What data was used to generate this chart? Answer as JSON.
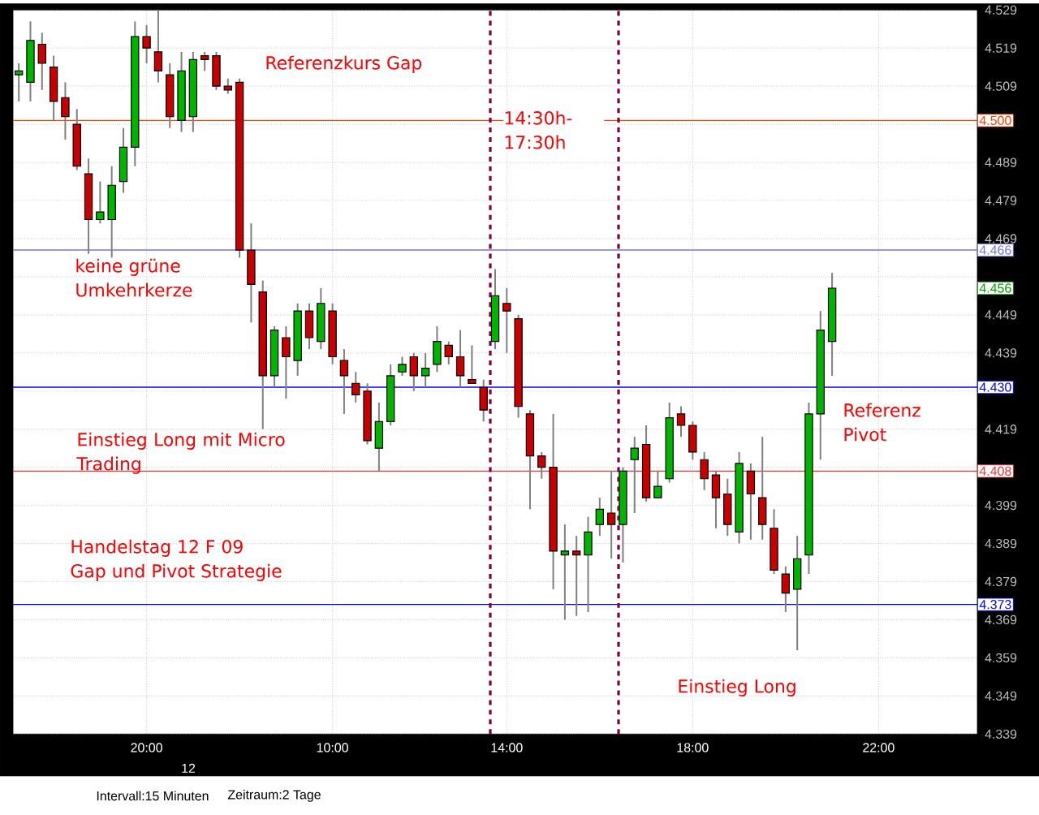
{
  "chart_data": {
    "type": "candlestick",
    "categories": [
      null,
      null,
      null,
      null,
      null,
      null,
      null,
      null,
      null,
      null,
      null,
      "20:00",
      null,
      null,
      null,
      null,
      null,
      null,
      null,
      null,
      null,
      null,
      null,
      null,
      null,
      null,
      null,
      "10:00",
      null,
      null,
      null,
      null,
      null,
      null,
      null,
      null,
      null,
      null,
      null,
      null,
      null,
      null,
      "14:00",
      null,
      null,
      null,
      null,
      null,
      null,
      null,
      null,
      null,
      null,
      null,
      null,
      null,
      null,
      null,
      "18:00",
      null,
      null,
      null,
      null,
      null,
      null,
      null,
      null,
      null,
      null,
      null,
      null,
      null,
      null,
      null,
      "22:00",
      null,
      null,
      null,
      null,
      null,
      null,
      null,
      null
    ],
    "ohlc": [
      [
        4512,
        4515,
        4505,
        4513
      ],
      [
        4510,
        4526,
        4505,
        4521
      ],
      [
        4520,
        4523,
        4508,
        4515
      ],
      [
        4514,
        4517,
        4500,
        4505
      ],
      [
        4506,
        4510,
        4495,
        4501
      ],
      [
        4499,
        4503,
        4487,
        4488
      ],
      [
        4486,
        4490,
        4465,
        4474
      ],
      [
        4474,
        4484,
        4473,
        4476
      ],
      [
        4474,
        4488,
        4464,
        4483
      ],
      [
        4484,
        4498,
        4481,
        4493
      ],
      [
        4493,
        4526,
        4488,
        4522
      ],
      [
        4522,
        4525,
        4515,
        4519
      ],
      [
        4518,
        4529,
        4510,
        4513
      ],
      [
        4512,
        4515,
        4498,
        4501
      ],
      [
        4500,
        4518,
        4497,
        4513
      ],
      [
        4501,
        4518,
        4497,
        4516
      ],
      [
        4517,
        4518,
        4513,
        4516
      ],
      [
        4517,
        4518,
        4508,
        4509
      ],
      [
        4509,
        4511,
        4507,
        4508
      ],
      [
        4510,
        4511,
        4464,
        4466
      ],
      [
        4466,
        4473,
        4447,
        4457
      ],
      [
        4455,
        4458,
        4419,
        4433
      ],
      [
        4433,
        4446,
        4430,
        4445
      ],
      [
        4443,
        4446,
        4427,
        4438
      ],
      [
        4437,
        4452,
        4433,
        4450
      ],
      [
        4450,
        4452,
        4440,
        4443
      ],
      [
        4442,
        4456,
        4440,
        4452
      ],
      [
        4450,
        4452,
        4436,
        4438
      ],
      [
        4437,
        4440,
        4423,
        4433
      ],
      [
        4431,
        4434,
        4426,
        4428
      ],
      [
        4429,
        4431,
        4415,
        4416
      ],
      [
        4414,
        4426,
        4408,
        4421
      ],
      [
        4421,
        4436,
        4420,
        4433
      ],
      [
        4434,
        4438,
        4433,
        4436
      ],
      [
        4438,
        4439,
        4429,
        4433
      ],
      [
        4433,
        4439,
        4430,
        4435
      ],
      [
        4436,
        4446,
        4434,
        4442
      ],
      [
        4441,
        4442,
        4436,
        4438
      ],
      [
        4438,
        4445,
        4430,
        4433
      ],
      [
        4432,
        4441,
        4431,
        4431
      ],
      [
        4430,
        4432,
        4421,
        4424
      ],
      [
        4442,
        4461,
        4440,
        4454
      ],
      [
        4452,
        4456,
        4439,
        4450
      ],
      [
        4448,
        4449,
        4422,
        4425
      ],
      [
        4423,
        4424,
        4398,
        4412
      ],
      [
        4412,
        4413,
        4406,
        4409
      ],
      [
        4409,
        4423,
        4377,
        4387
      ],
      [
        4386,
        4394,
        4369,
        4387
      ],
      [
        4387,
        4391,
        4370,
        4386
      ],
      [
        4386,
        4396,
        4371,
        4392
      ],
      [
        4394,
        4401,
        4391,
        4398
      ],
      [
        4397,
        4408,
        4385,
        4394
      ],
      [
        4394,
        4409,
        4384,
        4408
      ],
      [
        4411,
        4417,
        4397,
        4414
      ],
      [
        4415,
        4420,
        4400,
        4401
      ],
      [
        4401,
        4408,
        4401,
        4404
      ],
      [
        4406,
        4426,
        4405,
        4422
      ],
      [
        4423,
        4425,
        4417,
        4420
      ],
      [
        4420,
        4421,
        4411,
        4413
      ],
      [
        4411,
        4413,
        4403,
        4406
      ],
      [
        4407,
        4408,
        4393,
        4401
      ],
      [
        4402,
        4406,
        4391,
        4394
      ],
      [
        4392,
        4413,
        4389,
        4410
      ],
      [
        4408,
        4410,
        4390,
        4402
      ],
      [
        4401,
        4417,
        4390,
        4394
      ],
      [
        4393,
        4398,
        4381,
        4382
      ],
      [
        4381,
        4383,
        4371,
        4376
      ],
      [
        4377,
        4391,
        4361,
        4385
      ],
      [
        4386,
        4426,
        4381,
        4423
      ],
      [
        4423,
        4450,
        4411,
        4445
      ],
      [
        4442,
        4460,
        4433,
        4456
      ],
      null,
      null,
      null,
      null,
      null,
      null,
      null,
      null,
      null,
      null,
      null,
      null
    ],
    "colors": [
      "#00b400",
      "#00b400",
      "#c80000",
      "#c80000",
      "#c80000",
      "#c80000",
      "#c80000",
      "#00b400",
      "#00b400",
      "#00b400",
      "#00b400",
      "#c80000",
      "#c80000",
      "#c80000",
      "#00b400",
      "#00b400",
      "#c80000",
      "#c80000",
      "#c80000",
      "#c80000",
      "#c80000",
      "#c80000",
      "#00b400",
      "#c80000",
      "#00b400",
      "#c80000",
      "#00b400",
      "#c80000",
      "#c80000",
      "#c80000",
      "#c80000",
      "#00b400",
      "#00b400",
      "#00b400",
      "#c80000",
      "#00b400",
      "#00b400",
      "#c80000",
      "#c80000",
      "#c80000",
      "#c80000",
      "#00b400",
      "#c80000",
      "#c80000",
      "#c80000",
      "#c80000",
      "#c80000",
      "#00b400",
      "#c80000",
      "#00b400",
      "#00b400",
      "#c80000",
      "#00b400",
      "#00b400",
      "#c80000",
      "#00b400",
      "#00b400",
      "#c80000",
      "#c80000",
      "#c80000",
      "#c80000",
      "#c80000",
      "#00b400",
      "#c80000",
      "#c80000",
      "#c80000",
      "#c80000",
      "#00b400",
      "#00b400",
      "#00b400",
      "#00b400",
      null,
      null,
      null,
      null,
      null,
      null,
      null,
      null,
      null,
      null,
      null,
      null
    ],
    "ylim": [
      4339,
      4529
    ],
    "yticks": [
      {
        "value": 4339,
        "label": "4.339"
      },
      {
        "value": 4349,
        "label": "4.349"
      },
      {
        "value": 4359,
        "label": "4.359"
      },
      {
        "value": 4369,
        "label": "4.369"
      },
      {
        "value": 4379,
        "label": "4.379"
      },
      {
        "value": 4389,
        "label": "4.389"
      },
      {
        "value": 4399,
        "label": "4.399"
      },
      {
        "value": 4409,
        "label": null
      },
      {
        "value": 4419,
        "label": "4.419"
      },
      {
        "value": 4429,
        "label": null
      },
      {
        "value": 4439,
        "label": "4.439"
      },
      {
        "value": 4449,
        "label": "4.449"
      },
      {
        "value": 4459,
        "label": null
      },
      {
        "value": 4469,
        "label": "4.469"
      },
      {
        "value": 4479,
        "label": "4.479"
      },
      {
        "value": 4489,
        "label": "4.489"
      },
      {
        "value": 4499,
        "label": null
      },
      {
        "value": 4509,
        "label": "4.509"
      },
      {
        "value": 4519,
        "label": "4.519"
      },
      {
        "value": 4529,
        "label": "4.529"
      }
    ],
    "grid": true,
    "ref_lines": [
      {
        "axis": "y",
        "value": 4500,
        "label": "4.500",
        "color": "#ff4000"
      },
      {
        "axis": "y",
        "value": 4466,
        "label": "4.466",
        "color": "#7070ff"
      },
      {
        "axis": "y",
        "value": 4430,
        "label": "4.430",
        "color": "#0000ff"
      },
      {
        "axis": "y",
        "value": 4408,
        "label": "4.408",
        "color": "#ff3030"
      },
      {
        "axis": "y",
        "value": 4373,
        "label": "4.373",
        "color": "#0000ff"
      }
    ],
    "annotations": [
      "Referenzkurs Gap",
      "keine grüne Umkehrkerze",
      "Einstieg Long mit Micro Trading",
      "Handelstag 12 F 09",
      "Gap und Pivot Strategie",
      "Referenz Pivot",
      "Einstieg Long",
      {
        "text": "4.456",
        "y": 4456
      },
      "12",
      "Intervall:15 Minuten",
      "Zeitraum:2 Tage",
      "14:30h-17:30h"
    ]
  }
}
